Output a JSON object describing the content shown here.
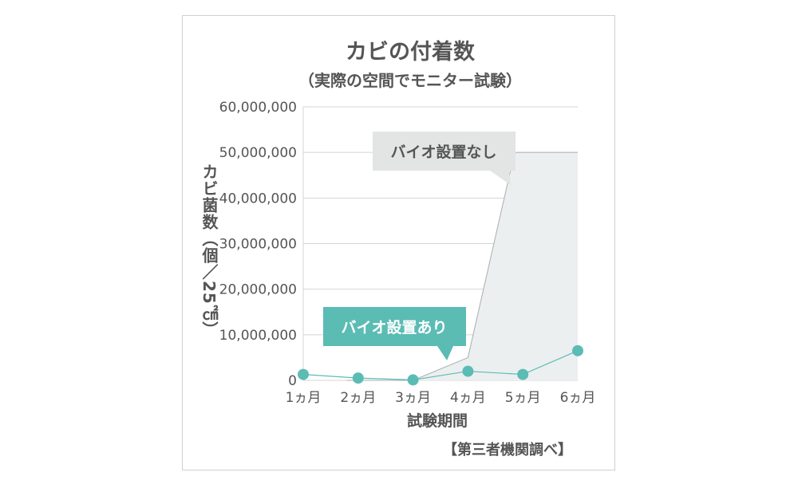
{
  "chart_data": {
    "type": "line",
    "title": "カビの付着数",
    "subtitle": "（実際の空間でモニター試験）",
    "xlabel": "試験期間",
    "ylabel": "カビ菌数（個／25㎠）",
    "source": "【第三者機関調べ】",
    "categories": [
      "1ヵ月",
      "2ヵ月",
      "3ヵ月",
      "4ヵ月",
      "5ヵ月",
      "6ヵ月"
    ],
    "ylim": [
      0,
      60000000
    ],
    "yticks": [
      "0",
      "10,000,000",
      "20,000,000",
      "30,000,000",
      "40,000,000",
      "50,000,000",
      "60,000,000"
    ],
    "grid": true,
    "series": [
      {
        "name": "バイオ設置なし",
        "style": "area",
        "x": [
          1.8,
          3.0,
          4.0,
          4.85,
          6.0
        ],
        "values": [
          0,
          0,
          5000000,
          50000000,
          50000000
        ],
        "color": "#eceff0",
        "line_color": "#a9adae"
      },
      {
        "name": "バイオ設置あり",
        "style": "line-markers",
        "x": [
          1,
          2,
          3,
          4,
          5,
          6
        ],
        "values": [
          1300000,
          500000,
          100000,
          2000000,
          1300000,
          6500000
        ],
        "color": "#5bbcb4"
      }
    ],
    "callouts": {
      "without": "バイオ設置なし",
      "with": "バイオ設置あり"
    },
    "text_color": "#555555",
    "grid_color": "#d4d4d4"
  }
}
